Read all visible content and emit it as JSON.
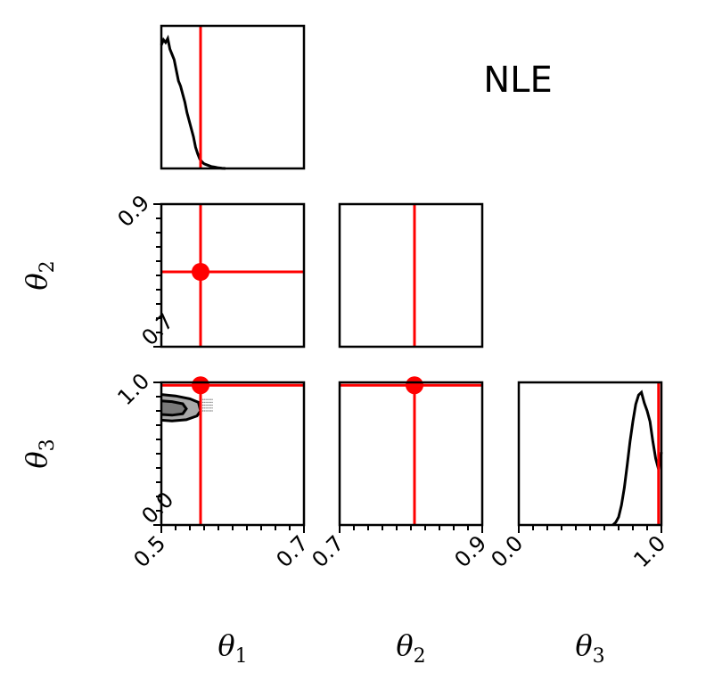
{
  "chart_data": {
    "type": "corner",
    "title": "NLE",
    "parameters": [
      {
        "label": "θ",
        "subscript": "1",
        "range": [
          0.5,
          0.7
        ],
        "tick_labels": [
          "0.5",
          "0.7"
        ],
        "true_value": 0.555
      },
      {
        "label": "θ",
        "subscript": "2",
        "range": [
          0.7,
          0.9
        ],
        "tick_labels": [
          "0.7",
          "0.9"
        ],
        "true_value": 0.805
      },
      {
        "label": "θ",
        "subscript": "3",
        "range": [
          0.0,
          1.0
        ],
        "tick_labels": [
          "0.0",
          "1.0"
        ],
        "true_value": 0.98
      }
    ],
    "marker_color": "#ff0000",
    "contour_fill_color": "#a9a9a9",
    "marginals": [
      {
        "parameter": "θ1",
        "x": [
          0.5,
          0.503,
          0.506,
          0.509,
          0.512,
          0.515,
          0.518,
          0.521,
          0.524,
          0.527,
          0.53,
          0.533,
          0.536,
          0.539,
          0.542,
          0.545,
          0.548,
          0.551,
          0.554,
          0.557,
          0.56,
          0.565,
          0.57,
          0.575,
          0.58,
          0.585,
          0.59
        ],
        "density": [
          0.93,
          0.97,
          0.95,
          0.98,
          0.9,
          0.86,
          0.82,
          0.74,
          0.66,
          0.62,
          0.56,
          0.5,
          0.42,
          0.36,
          0.3,
          0.24,
          0.16,
          0.11,
          0.07,
          0.05,
          0.035,
          0.025,
          0.015,
          0.01,
          0.005,
          0.002,
          0.0
        ]
      },
      {
        "parameter": "θ2",
        "x": [],
        "density": []
      },
      {
        "parameter": "θ3",
        "x": [
          0.66,
          0.68,
          0.7,
          0.72,
          0.74,
          0.76,
          0.78,
          0.8,
          0.82,
          0.84,
          0.86,
          0.88,
          0.9,
          0.92,
          0.94,
          0.96,
          0.98,
          1.0
        ],
        "density": [
          0.0,
          0.02,
          0.06,
          0.15,
          0.28,
          0.45,
          0.63,
          0.78,
          0.91,
          0.98,
          1.0,
          0.92,
          0.86,
          0.78,
          0.63,
          0.5,
          0.42,
          0.55
        ]
      }
    ],
    "contour_theta1_theta3": {
      "outer": [
        [
          0.5,
          0.735
        ],
        [
          0.515,
          0.73
        ],
        [
          0.535,
          0.738
        ],
        [
          0.55,
          0.765
        ],
        [
          0.555,
          0.8
        ],
        [
          0.552,
          0.86
        ],
        [
          0.54,
          0.885
        ],
        [
          0.52,
          0.905
        ],
        [
          0.5,
          0.915
        ]
      ],
      "inner": [
        [
          0.5,
          0.775
        ],
        [
          0.515,
          0.77
        ],
        [
          0.53,
          0.78
        ],
        [
          0.535,
          0.815
        ],
        [
          0.53,
          0.85
        ],
        [
          0.515,
          0.865
        ],
        [
          0.5,
          0.87
        ]
      ]
    }
  }
}
